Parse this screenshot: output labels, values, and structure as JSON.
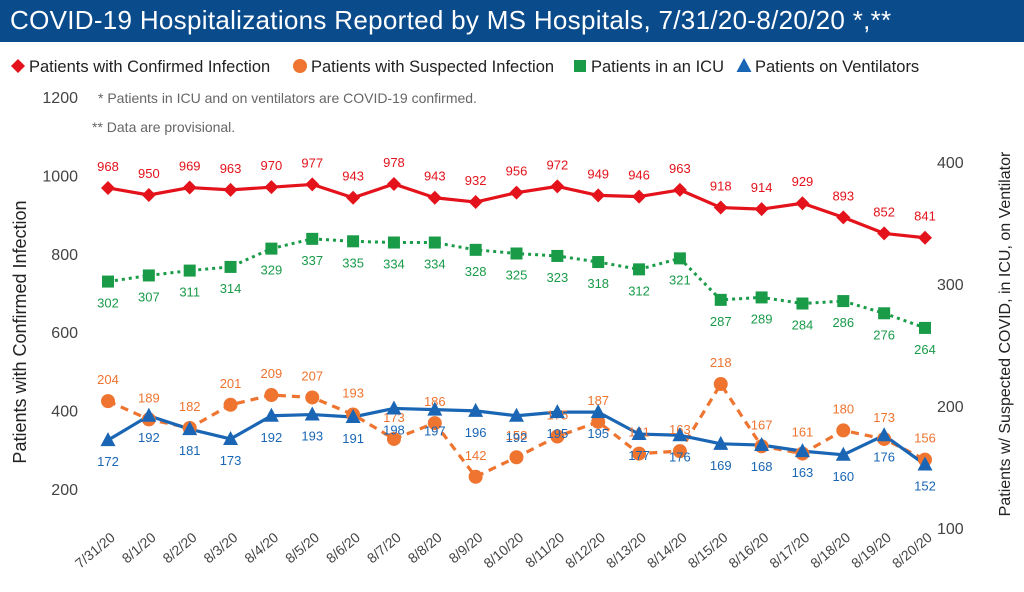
{
  "header": {
    "title": "COVID-19 Hospitalizations Reported by MS Hospitals, 7/31/20-8/20/20 *,**"
  },
  "notes": [
    "* Patients in ICU and on ventilators are COVID-19 confirmed.",
    "** Data are provisional."
  ],
  "colors": {
    "title_bg": "#0a4b8c",
    "confirmed": "#e3121b",
    "suspected": "#ee7430",
    "icu": "#199b48",
    "vent": "#1a66b4"
  },
  "chart_data": {
    "type": "line",
    "title": "COVID-19 Hospitalizations Reported by MS Hospitals, 7/31/20-8/20/20 *,**",
    "categories": [
      "7/31/20",
      "8/1/20",
      "8/2/20",
      "8/3/20",
      "8/4/20",
      "8/5/20",
      "8/6/20",
      "8/7/20",
      "8/8/20",
      "8/9/20",
      "8/10/20",
      "8/11/20",
      "8/12/20",
      "8/13/20",
      "8/14/20",
      "8/15/20",
      "8/16/20",
      "8/17/20",
      "8/18/20",
      "8/19/20",
      "8/20/20"
    ],
    "ylabel_left": "Patients with Confirmed Infection",
    "ylabel_right": "Patients w/ Suspected COVID, in ICU, on Ventilator",
    "ylim_left": [
      200,
      1200
    ],
    "yticks_left": [
      "200",
      "400",
      "600",
      "800",
      "1000",
      "1200"
    ],
    "ylim_right": [
      100,
      400
    ],
    "yticks_right": [
      "100",
      "200",
      "300",
      "400"
    ],
    "grid": false,
    "legend_position": "top",
    "series": [
      {
        "name": "Patients with Confirmed Infection",
        "axis": "left",
        "marker": "diamond",
        "line": "solid",
        "color": "#e3121b",
        "values": [
          968,
          950,
          969,
          963,
          970,
          977,
          943,
          978,
          943,
          932,
          956,
          972,
          949,
          946,
          963,
          918,
          914,
          929,
          893,
          852,
          841
        ]
      },
      {
        "name": "Patients with Suspected Infection",
        "axis": "right",
        "marker": "circle",
        "line": "dashed",
        "color": "#ee7430",
        "values": [
          204,
          189,
          182,
          201,
          209,
          207,
          193,
          173,
          186,
          142,
          158,
          175,
          187,
          161,
          163,
          218,
          167,
          161,
          180,
          173,
          156
        ]
      },
      {
        "name": "Patients in an ICU",
        "axis": "right",
        "marker": "square",
        "line": "dotted",
        "color": "#199b48",
        "values": [
          302,
          307,
          311,
          314,
          329,
          337,
          335,
          334,
          334,
          328,
          325,
          323,
          318,
          312,
          321,
          287,
          289,
          284,
          286,
          276,
          264
        ]
      },
      {
        "name": "Patients on Ventilators",
        "axis": "right",
        "marker": "triangle",
        "line": "solid",
        "color": "#1a66b4",
        "values": [
          172,
          192,
          181,
          173,
          192,
          193,
          191,
          198,
          197,
          196,
          192,
          195,
          195,
          177,
          176,
          169,
          168,
          163,
          160,
          176,
          152
        ]
      }
    ]
  }
}
